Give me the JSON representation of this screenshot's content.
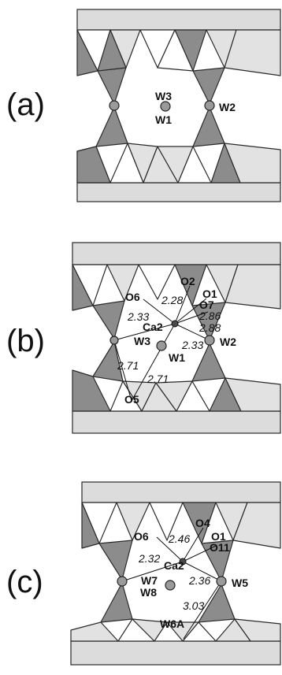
{
  "panels": {
    "a": {
      "label": "(a)",
      "sites": {
        "w3": "W3",
        "w1": "W1",
        "w2": "W2"
      }
    },
    "b": {
      "label": "(b)",
      "sites": {
        "o2": "O2",
        "o1": "O1",
        "o7": "O7",
        "o6": "O6",
        "ca2": "Ca2",
        "w3": "W3",
        "w1": "W1",
        "w2": "W2",
        "o5": "O5"
      },
      "distances": {
        "d1": "2.28",
        "d2": "2.86",
        "d3": "2.88",
        "d4": "2.33",
        "d5": "2.33",
        "d6": "2.71",
        "d7": "2.71"
      }
    },
    "c": {
      "label": "(c)",
      "sites": {
        "o4": "O4",
        "o1": "O1",
        "o11": "O11",
        "o6": "O6",
        "ca2": "Ca2",
        "w7": "W7",
        "w8": "W8",
        "w5": "W5",
        "w6a": "W6A"
      },
      "distances": {
        "d1": "2.46",
        "d2": "2.32",
        "d3": "2.36",
        "d4": "3.03"
      }
    }
  }
}
